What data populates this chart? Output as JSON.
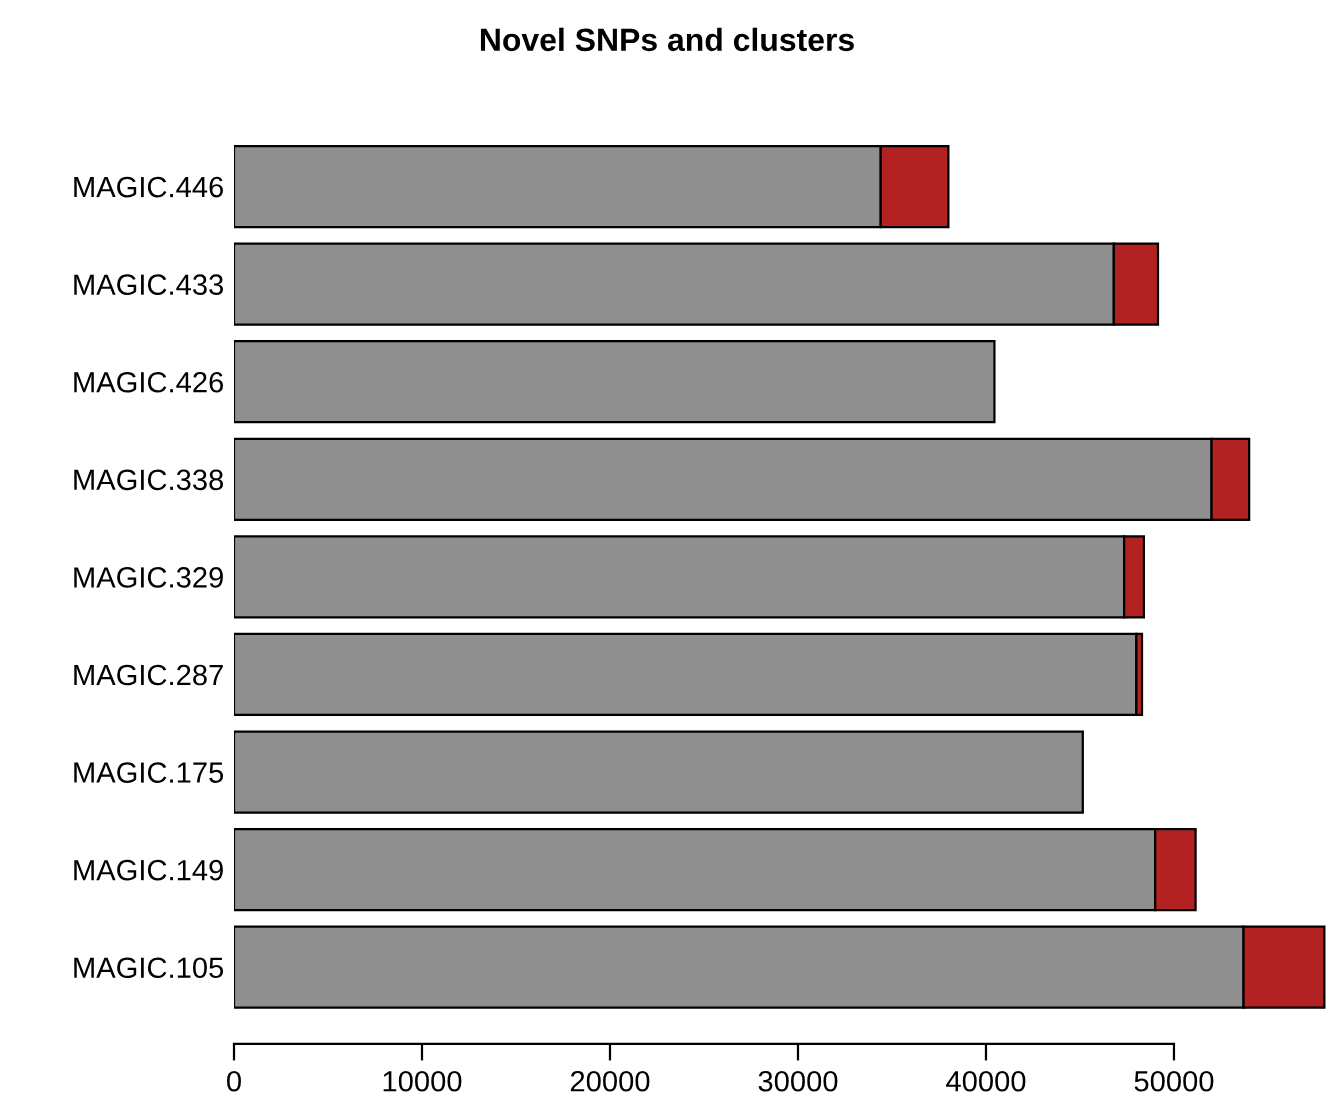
{
  "chart_data": {
    "type": "bar",
    "orientation": "horizontal",
    "stacked": true,
    "title": "Novel SNPs and clusters",
    "categories": [
      "MAGIC.446",
      "MAGIC.433",
      "MAGIC.426",
      "MAGIC.338",
      "MAGIC.329",
      "MAGIC.287",
      "MAGIC.175",
      "MAGIC.149",
      "MAGIC.105"
    ],
    "series": [
      {
        "color": "#8f8f8f",
        "values": [
          34400,
          46800,
          40450,
          52000,
          47350,
          48000,
          45150,
          49000,
          53700
        ]
      },
      {
        "color": "#b22222",
        "values": [
          3600,
          2350,
          0,
          2000,
          1050,
          300,
          0,
          2150,
          4300
        ]
      }
    ],
    "xlim": [
      0,
      58300
    ],
    "xticks": [
      0,
      10000,
      20000,
      30000,
      40000,
      50000
    ],
    "grid": false,
    "legend": false
  }
}
